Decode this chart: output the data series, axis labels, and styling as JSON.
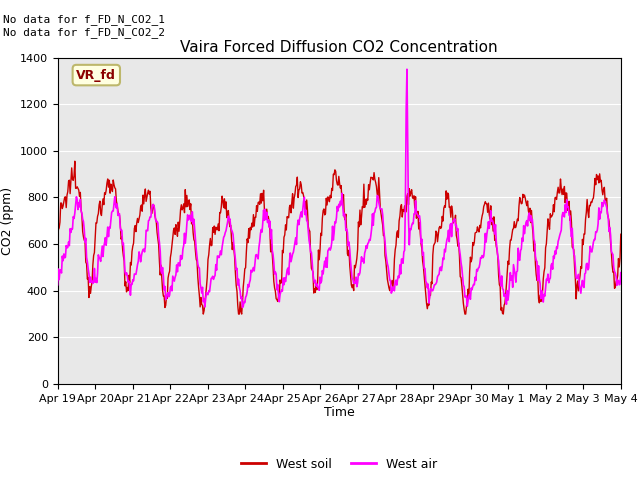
{
  "title": "Vaira Forced Diffusion CO2 Concentration",
  "ylabel": "CO2 (ppm)",
  "xlabel": "Time",
  "ylim": [
    0,
    1400
  ],
  "yticks": [
    0,
    200,
    400,
    600,
    800,
    1000,
    1200,
    1400
  ],
  "xtick_labels": [
    "Apr 19",
    "Apr 20",
    "Apr 21",
    "Apr 22",
    "Apr 23",
    "Apr 24",
    "Apr 25",
    "Apr 26",
    "Apr 27",
    "Apr 28",
    "Apr 29",
    "Apr 30",
    "May 1",
    "May 2",
    "May 3",
    "May 4"
  ],
  "legend_entries": [
    "West soil",
    "West air"
  ],
  "soil_color": "#cc0000",
  "air_color": "#ff00ff",
  "annotation_text": "No data for f_FD_N_CO2_1\nNo data for f_FD_N_CO2_2",
  "box_label": "VR_fd",
  "background_color": "#ffffff",
  "plot_bg_color": "#e8e8e8",
  "grid_color": "#ffffff",
  "title_fontsize": 11,
  "axis_fontsize": 9,
  "tick_fontsize": 8,
  "annotation_fontsize": 8
}
